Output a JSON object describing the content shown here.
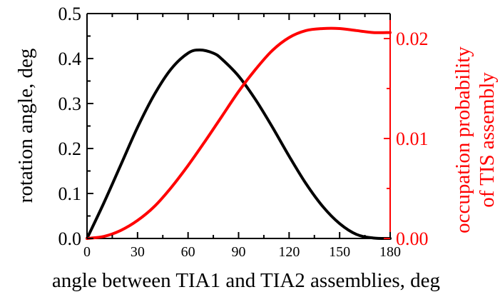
{
  "chart_data": {
    "type": "line",
    "xlabel": "angle between TIA1 and TIA2 assemblies, deg",
    "ylabel_left": "rotation angle, deg",
    "ylabel_right": [
      "occupation probability",
      "of TIS assembly"
    ],
    "xlim": [
      0,
      180
    ],
    "ylim_left": [
      0,
      0.5
    ],
    "ylim_right": [
      0,
      0.0225
    ],
    "x_ticks": [
      "0",
      "30",
      "60",
      "90",
      "120",
      "150",
      "180"
    ],
    "y_left_ticks": [
      "0.0",
      "0.1",
      "0.2",
      "0.3",
      "0.4",
      "0.5"
    ],
    "y_right_ticks": [
      "0.00",
      "0.01",
      "0.02"
    ],
    "grid": false,
    "colors": {
      "left": "#000000",
      "right": "#ff0000"
    },
    "series": [
      {
        "axis": "left",
        "color": "#000000",
        "x": [
          0,
          10,
          20,
          30,
          40,
          50,
          60,
          67,
          75,
          80,
          90,
          100,
          110,
          120,
          130,
          140,
          150,
          160,
          170,
          180
        ],
        "y": [
          0.0,
          0.079,
          0.163,
          0.247,
          0.32,
          0.377,
          0.412,
          0.419,
          0.412,
          0.399,
          0.361,
          0.309,
          0.248,
          0.183,
          0.122,
          0.071,
          0.033,
          0.009,
          0.001,
          0.0
        ]
      },
      {
        "axis": "right",
        "color": "#ff0000",
        "x": [
          0,
          10,
          20,
          30,
          40,
          50,
          60,
          70,
          80,
          90,
          100,
          110,
          120,
          130,
          140,
          150,
          160,
          170,
          180
        ],
        "y": [
          0.0,
          0.0002,
          0.0008,
          0.0018,
          0.0032,
          0.0051,
          0.0073,
          0.0097,
          0.0122,
          0.0147,
          0.0169,
          0.0188,
          0.0201,
          0.0208,
          0.021,
          0.021,
          0.0208,
          0.0206,
          0.0206
        ]
      }
    ]
  }
}
